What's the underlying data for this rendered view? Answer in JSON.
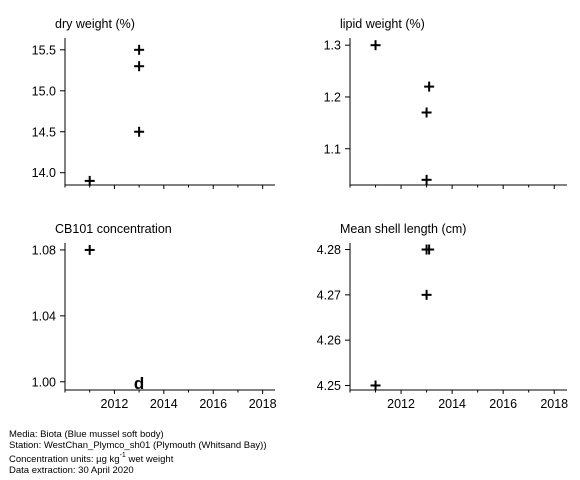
{
  "chart_data": [
    {
      "type": "scatter",
      "title": "dry weight (%)",
      "xlim": [
        2010,
        2018.5
      ],
      "ylim": [
        13.85,
        15.62
      ],
      "xticks": [
        2012,
        2014,
        2016,
        2018
      ],
      "xtick_labels_shown": false,
      "yticks": [
        14.0,
        14.5,
        15.0,
        15.5
      ],
      "ytick_labels": [
        "14.0",
        "14.5",
        "15.0",
        "15.5"
      ],
      "points": [
        {
          "x": 2011,
          "y": 13.9,
          "marker": "+"
        },
        {
          "x": 2013,
          "y": 14.5,
          "marker": "+"
        },
        {
          "x": 2013,
          "y": 15.3,
          "marker": "+"
        },
        {
          "x": 2013,
          "y": 15.5,
          "marker": "+"
        }
      ]
    },
    {
      "type": "scatter",
      "title": "lipid weight (%)",
      "xlim": [
        2010,
        2018.5
      ],
      "ylim": [
        1.03,
        1.31
      ],
      "xticks": [
        2012,
        2014,
        2016,
        2018
      ],
      "xtick_labels_shown": false,
      "yticks": [
        1.1,
        1.2,
        1.3
      ],
      "ytick_labels": [
        "1.1",
        "1.2",
        "1.3"
      ],
      "points": [
        {
          "x": 2011,
          "y": 1.3,
          "marker": "+"
        },
        {
          "x": 2013,
          "y": 1.04,
          "marker": "+"
        },
        {
          "x": 2013,
          "y": 1.17,
          "marker": "+"
        },
        {
          "x": 2013.1,
          "y": 1.22,
          "marker": "+"
        }
      ]
    },
    {
      "type": "scatter",
      "title": "CB101 concentration",
      "xlim": [
        2010,
        2018.5
      ],
      "ylim": [
        0.995,
        1.083
      ],
      "xticks": [
        2012,
        2014,
        2016,
        2018
      ],
      "xtick_labels_shown": true,
      "xtick_labels": [
        "2012",
        "2014",
        "2016",
        "2018"
      ],
      "yticks": [
        1.0,
        1.04,
        1.08
      ],
      "ytick_labels": [
        "1.00",
        "1.04",
        "1.08"
      ],
      "points": [
        {
          "x": 2011,
          "y": 1.08,
          "marker": "+"
        },
        {
          "x": 2013,
          "y": 1.0,
          "marker": "d"
        }
      ]
    },
    {
      "type": "scatter",
      "title": "Mean shell length (cm)",
      "xlim": [
        2010,
        2018.5
      ],
      "ylim": [
        4.249,
        4.281
      ],
      "xticks": [
        2012,
        2014,
        2016,
        2018
      ],
      "xtick_labels_shown": true,
      "xtick_labels": [
        "2012",
        "2014",
        "2016",
        "2018"
      ],
      "yticks": [
        4.25,
        4.26,
        4.27,
        4.28
      ],
      "ytick_labels": [
        "4.25",
        "4.26",
        "4.27",
        "4.28"
      ],
      "points": [
        {
          "x": 2011,
          "y": 4.25,
          "marker": "+"
        },
        {
          "x": 2013,
          "y": 4.27,
          "marker": "+"
        },
        {
          "x": 2013,
          "y": 4.28,
          "marker": "+"
        },
        {
          "x": 2013.1,
          "y": 4.28,
          "marker": "+"
        }
      ]
    }
  ],
  "footer": {
    "media": "Media: Biota (Blue mussel soft body)",
    "station": "Station: WestChan_Plymco_sh01 (Plymouth (Whitsand Bay))",
    "units_prefix": "Concentration units:  µg kg",
    "units_exponent": "-1",
    "units_suffix": " wet weight",
    "extraction": "Data extraction: 30 April 2020"
  }
}
